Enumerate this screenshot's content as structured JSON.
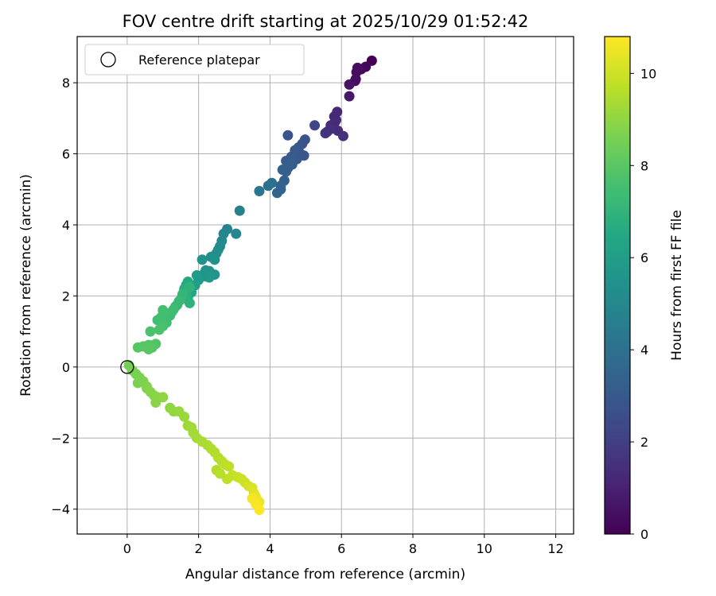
{
  "chart_data": {
    "type": "scatter",
    "title": "FOV centre drift starting at 2025/10/29 01:52:42",
    "xlabel": "Angular distance from reference (arcmin)",
    "ylabel": "Rotation from reference (arcmin)",
    "xlim": [
      -1.4,
      12.5
    ],
    "ylim": [
      -4.7,
      9.3
    ],
    "xticks": [
      0,
      2,
      4,
      6,
      8,
      10,
      12
    ],
    "yticks": [
      -4,
      -2,
      0,
      2,
      4,
      6,
      8
    ],
    "xtick_labels": [
      "0",
      "2",
      "4",
      "6",
      "8",
      "10",
      "12"
    ],
    "ytick_labels": [
      "−4",
      "−2",
      "0",
      "2",
      "4",
      "6",
      "8"
    ],
    "grid": true,
    "legend": {
      "label": "Reference platepar",
      "location": "top-left"
    },
    "reference_point": {
      "x": 0,
      "y": 0
    },
    "colorbar": {
      "label": "Hours from first FF file",
      "range": [
        0,
        10.8
      ],
      "ticks": [
        0,
        2,
        4,
        6,
        8,
        10
      ],
      "tick_labels": [
        "0",
        "2",
        "4",
        "6",
        "8",
        "10"
      ],
      "colormap": "viridis"
    },
    "series": [
      {
        "name": "FOV centre drift",
        "x": [
          6.85,
          6.68,
          6.55,
          6.45,
          6.42,
          6.38,
          6.22,
          6.4,
          6.22,
          5.88,
          5.6,
          5.7,
          5.8,
          5.9,
          6.05,
          5.7,
          5.82,
          5.55,
          5.85,
          5.25,
          4.98,
          4.9,
          4.8,
          4.7,
          4.6,
          4.75,
          4.95,
          4.85,
          4.62,
          4.5,
          4.4,
          4.45,
          4.35,
          4.3,
          4.2,
          4.5,
          4.45,
          4.3,
          4.05,
          3.95,
          3.7,
          3.15,
          3.05,
          2.8,
          2.7,
          2.65,
          2.6,
          2.55,
          2.45,
          2.5,
          2.35,
          2.3,
          2.2,
          2.1,
          2.0,
          1.9,
          2.45,
          2.2,
          2.15,
          2.3,
          2.25,
          1.95,
          1.8,
          1.7,
          1.65,
          1.7,
          1.6,
          1.75,
          1.65,
          1.5,
          1.4,
          1.35,
          1.25,
          1.2,
          1.1,
          1.0,
          0.9,
          0.8,
          0.75,
          0.7,
          0.6,
          1.0,
          1.3,
          1.45,
          1.55,
          1.75,
          0.95,
          0.85,
          0.65,
          0.6,
          0.3,
          0.45,
          0.05,
          0.15,
          0.25,
          0.35,
          0.45,
          0.55,
          0.65,
          0.75,
          0.85,
          1.0,
          1.2,
          1.3,
          1.45,
          1.6,
          1.7,
          1.8,
          1.85,
          1.95,
          2.1,
          2.25,
          2.35,
          2.45,
          2.55,
          0.3,
          0.55,
          0.8,
          2.65,
          2.75,
          2.85,
          2.95,
          3.1,
          3.2,
          3.3,
          3.4,
          3.5,
          3.55,
          3.6,
          3.65,
          3.7,
          3.6,
          3.5,
          3.7,
          2.5,
          2.6,
          2.8
        ],
        "y": [
          8.62,
          8.45,
          8.38,
          8.42,
          8.3,
          8.05,
          7.95,
          8.1,
          7.62,
          7.18,
          6.62,
          6.8,
          7.05,
          6.65,
          6.5,
          6.7,
          6.9,
          6.58,
          6.95,
          6.8,
          6.4,
          6.28,
          6.18,
          6.1,
          5.92,
          5.85,
          5.95,
          6.0,
          5.7,
          5.6,
          5.25,
          5.8,
          5.55,
          5.0,
          4.9,
          6.52,
          5.5,
          5.1,
          5.18,
          5.1,
          4.95,
          4.4,
          3.75,
          3.88,
          3.75,
          3.55,
          3.4,
          3.3,
          3.02,
          3.2,
          3.1,
          2.7,
          2.55,
          3.02,
          2.45,
          2.3,
          2.6,
          2.72,
          2.62,
          2.52,
          2.65,
          2.58,
          2.1,
          1.95,
          2.3,
          2.4,
          2.2,
          1.8,
          2.05,
          1.9,
          1.75,
          1.7,
          1.55,
          1.45,
          1.25,
          1.15,
          1.05,
          0.65,
          0.62,
          0.55,
          0.5,
          1.6,
          1.62,
          1.85,
          2.05,
          2.25,
          1.4,
          1.32,
          1.0,
          0.62,
          0.55,
          0.58,
          0.05,
          -0.1,
          -0.2,
          -0.3,
          -0.4,
          -0.55,
          -0.7,
          -0.8,
          -0.85,
          -0.85,
          -1.15,
          -1.25,
          -1.25,
          -1.4,
          -1.65,
          -1.7,
          -1.85,
          -2.0,
          -2.1,
          -2.2,
          -2.3,
          -2.4,
          -2.55,
          -0.45,
          -0.6,
          -1.0,
          -2.65,
          -2.75,
          -2.8,
          -3.05,
          -3.1,
          -3.15,
          -3.25,
          -3.35,
          -3.4,
          -3.55,
          -3.65,
          -3.75,
          -3.8,
          -3.85,
          -3.7,
          -4.02,
          -2.9,
          -3.0,
          -3.15
        ],
        "hours": [
          0.0,
          0.15,
          0.25,
          0.35,
          0.3,
          0.45,
          0.55,
          0.4,
          0.7,
          1.2,
          1.35,
          1.3,
          1.25,
          1.4,
          1.5,
          1.45,
          1.28,
          1.55,
          1.32,
          2.3,
          2.7,
          2.8,
          2.9,
          3.0,
          3.1,
          3.05,
          2.95,
          2.85,
          3.2,
          3.25,
          3.3,
          3.15,
          3.28,
          3.4,
          3.5,
          2.75,
          3.22,
          3.45,
          3.9,
          4.0,
          4.2,
          4.7,
          4.95,
          4.9,
          4.95,
          5.05,
          5.1,
          5.15,
          5.4,
          5.25,
          5.3,
          5.6,
          5.7,
          5.5,
          5.8,
          5.95,
          5.55,
          5.45,
          5.65,
          5.75,
          5.6,
          5.85,
          6.4,
          6.6,
          6.45,
          6.5,
          6.7,
          6.9,
          6.8,
          7.0,
          7.1,
          7.2,
          7.3,
          7.4,
          7.5,
          7.6,
          7.7,
          7.8,
          7.85,
          7.9,
          8.0,
          7.55,
          7.4,
          7.25,
          7.1,
          6.95,
          7.45,
          7.5,
          7.65,
          7.85,
          7.95,
          7.9,
          8.5,
          8.55,
          8.6,
          8.65,
          8.7,
          8.75,
          8.8,
          8.85,
          8.9,
          8.95,
          9.0,
          9.05,
          9.1,
          9.15,
          9.2,
          9.25,
          9.3,
          9.35,
          9.4,
          9.45,
          9.5,
          9.55,
          9.6,
          8.62,
          8.72,
          8.88,
          9.65,
          9.7,
          9.75,
          9.8,
          9.9,
          9.95,
          10.0,
          10.1,
          10.2,
          10.3,
          10.4,
          10.5,
          10.6,
          10.7,
          10.65,
          10.8,
          9.55,
          9.62,
          9.72
        ]
      }
    ]
  }
}
